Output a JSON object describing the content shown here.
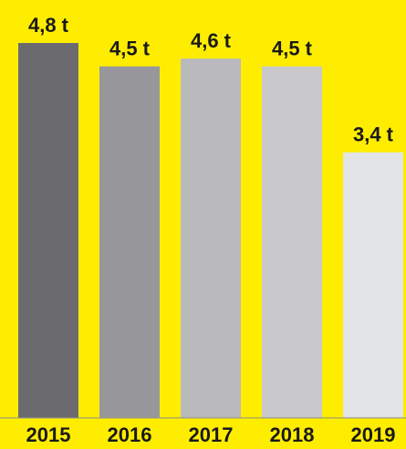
{
  "chart_data": {
    "type": "bar",
    "title": "",
    "xlabel": "",
    "ylabel": "",
    "categories": [
      "2015",
      "2016",
      "2017",
      "2018",
      "2019"
    ],
    "values": [
      4.8,
      4.5,
      4.6,
      4.5,
      3.4
    ],
    "value_labels": [
      "4,8 t",
      "4,5 t",
      "4,6 t",
      "4,5 t",
      "3,4 t"
    ],
    "bar_colors": [
      "#6B6B6F",
      "#98989C",
      "#BABABD",
      "#C9C9CC",
      "#E3E4E6"
    ],
    "background": "#FFED00",
    "ylim": [
      0,
      4.8
    ],
    "grid": false,
    "legend": "none"
  }
}
